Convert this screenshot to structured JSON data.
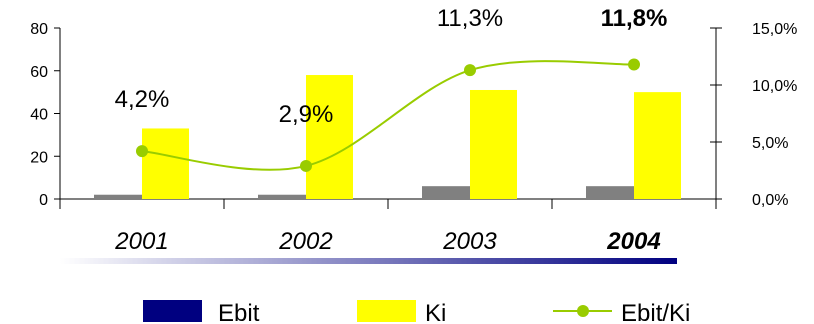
{
  "chart_data": {
    "type": "bar",
    "categories": [
      "2001",
      "2002",
      "2003",
      "2004"
    ],
    "highlight_category": "2004",
    "series": [
      {
        "name": "Ebit",
        "type": "bar",
        "axis": "left",
        "values": [
          2.0,
          2.0,
          6.0,
          6.0
        ],
        "legend_color": "#000080",
        "bar_color": "#808080"
      },
      {
        "name": "Ki",
        "type": "bar",
        "axis": "left",
        "values": [
          33.0,
          58.0,
          51.0,
          50.0
        ],
        "color": "#FFFF00"
      },
      {
        "name": "Ebit/Ki",
        "type": "line",
        "axis": "right",
        "values": [
          4.2,
          2.9,
          11.3,
          11.8
        ],
        "color": "#99CC00",
        "data_labels": [
          "4,2%",
          "2,9%",
          "11,3%",
          "11,8%"
        ]
      }
    ],
    "left_axis": {
      "ylim": [
        0,
        80
      ],
      "ticks": [
        "0",
        "20",
        "40",
        "60",
        "80"
      ]
    },
    "right_axis": {
      "ylim": [
        0,
        15
      ],
      "ticks": [
        "0,0%",
        "5,0%",
        "10,0%",
        "15,0%"
      ]
    },
    "legend": {
      "placement": "bottom",
      "entries": [
        "Ebit",
        "Ki",
        "Ebit/Ki"
      ]
    },
    "grid": false
  }
}
